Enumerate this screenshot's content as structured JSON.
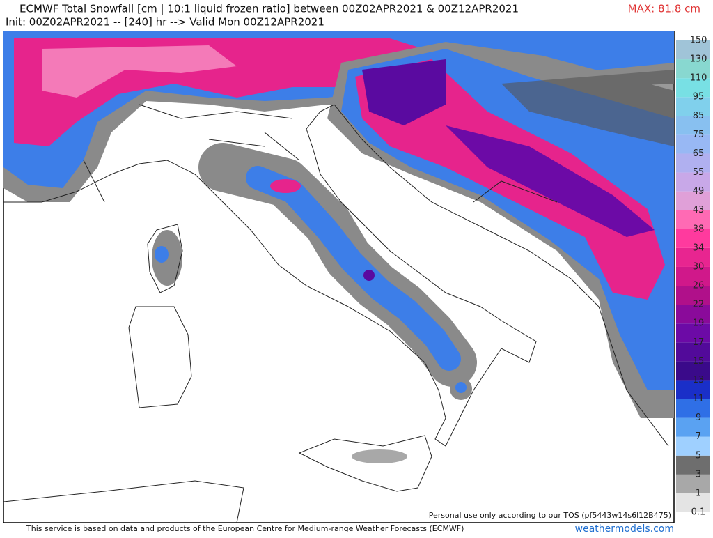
{
  "header": {
    "title": "ECMWF Total Snowfall [cm | 10:1 liquid frozen ratio] between 00Z02APR2021 & 00Z12APR2021",
    "subtitle": "Init: 00Z02APR2021 -- [240] hr --> Valid Mon 00Z12APR2021",
    "max_label": "MAX: 81.8 cm"
  },
  "colorbar": {
    "levels": [
      0.1,
      1,
      3,
      5,
      7,
      9,
      11,
      13,
      15,
      17,
      19,
      22,
      26,
      30,
      34,
      38,
      43,
      49,
      55,
      65,
      75,
      85,
      95,
      110,
      130,
      150
    ],
    "colors": [
      "#e4e4e4",
      "#a8a8a8",
      "#6e6e6e",
      "#9fd0ff",
      "#5aa2f2",
      "#2f6fe6",
      "#1a2fc8",
      "#3a0a8a",
      "#520a9a",
      "#6c0aa6",
      "#8a0a9a",
      "#b0108a",
      "#d0188a",
      "#e82590",
      "#ff3a9e",
      "#ff6ab4",
      "#e0a0d8",
      "#c8a8e8",
      "#b0b0f0",
      "#98b8f4",
      "#88c0f0",
      "#80d0ec",
      "#78e0e4",
      "#88d8d0",
      "#a0c4d8"
    ]
  },
  "map": {
    "notice": "Personal use only according to our TOS (pf5443w14s6l12B475)"
  },
  "footer": {
    "source": "This service is based on data and products of the European Centre for Medium-range Weather Forecasts (ECMWF)",
    "site": "weathermodels.com"
  }
}
